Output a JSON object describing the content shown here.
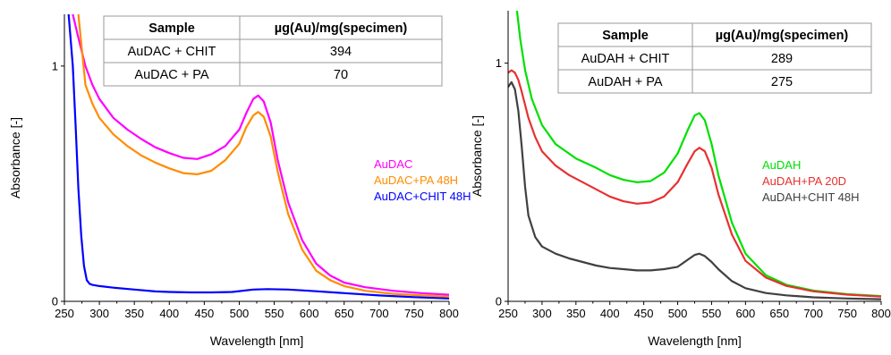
{
  "chart_data": [
    {
      "type": "line",
      "xlabel": "Wavelength [nm]",
      "ylabel": "Absorbance [-]",
      "xlim": [
        250,
        800
      ],
      "ylim": [
        0,
        1.22
      ],
      "x_ticks": [
        250,
        300,
        350,
        400,
        450,
        500,
        550,
        600,
        650,
        700,
        750,
        800
      ],
      "y_ticks": [
        0,
        1
      ],
      "grid": false,
      "legend_position": "center-right",
      "series": [
        {
          "name": "AuDAC",
          "color": "#ff00ff",
          "x": [
            262,
            270,
            280,
            290,
            300,
            320,
            340,
            360,
            380,
            400,
            420,
            440,
            460,
            480,
            500,
            510,
            520,
            527,
            535,
            545,
            555,
            570,
            590,
            610,
            630,
            650,
            680,
            720,
            760,
            800
          ],
          "y": [
            1.22,
            1.12,
            1.0,
            0.92,
            0.86,
            0.78,
            0.73,
            0.69,
            0.655,
            0.63,
            0.61,
            0.605,
            0.625,
            0.66,
            0.73,
            0.8,
            0.86,
            0.875,
            0.85,
            0.76,
            0.6,
            0.42,
            0.26,
            0.16,
            0.11,
            0.08,
            0.06,
            0.045,
            0.035,
            0.028
          ]
        },
        {
          "name": "AuDAC+PA 48H",
          "color": "#ff8c00",
          "x": [
            270,
            280,
            290,
            300,
            320,
            340,
            360,
            380,
            400,
            420,
            440,
            460,
            480,
            500,
            510,
            520,
            527,
            535,
            545,
            555,
            570,
            590,
            610,
            630,
            650,
            680,
            720,
            760,
            800
          ],
          "y": [
            1.22,
            0.92,
            0.84,
            0.78,
            0.71,
            0.66,
            0.62,
            0.59,
            0.565,
            0.545,
            0.54,
            0.555,
            0.6,
            0.67,
            0.74,
            0.79,
            0.805,
            0.785,
            0.7,
            0.55,
            0.37,
            0.22,
            0.13,
            0.09,
            0.065,
            0.045,
            0.032,
            0.025,
            0.02
          ]
        },
        {
          "name": "AuDAC+CHIT 48H",
          "color": "#0000ff",
          "x": [
            256,
            262,
            266,
            270,
            274,
            278,
            282,
            286,
            290,
            300,
            320,
            350,
            380,
            400,
            430,
            460,
            490,
            520,
            540,
            570,
            600,
            650,
            700,
            750,
            800
          ],
          "y": [
            1.22,
            1.0,
            0.75,
            0.48,
            0.28,
            0.15,
            0.09,
            0.075,
            0.07,
            0.065,
            0.058,
            0.05,
            0.042,
            0.04,
            0.038,
            0.038,
            0.04,
            0.05,
            0.052,
            0.05,
            0.045,
            0.035,
            0.025,
            0.018,
            0.012
          ]
        }
      ]
    },
    {
      "type": "line",
      "xlabel": "Wavelength [nm]",
      "ylabel": "Absorbance [-]",
      "xlim": [
        250,
        800
      ],
      "ylim": [
        0,
        1.22
      ],
      "x_ticks": [
        250,
        300,
        350,
        400,
        450,
        500,
        550,
        600,
        650,
        700,
        750,
        800
      ],
      "y_ticks": [
        0,
        1
      ],
      "grid": false,
      "legend_position": "center-right",
      "series": [
        {
          "name": "AuDAH",
          "color": "#00e000",
          "x": [
            263,
            268,
            275,
            285,
            300,
            320,
            350,
            380,
            400,
            420,
            440,
            460,
            480,
            500,
            515,
            525,
            532,
            540,
            550,
            560,
            580,
            600,
            630,
            660,
            700,
            750,
            800
          ],
          "y": [
            1.22,
            1.1,
            0.97,
            0.85,
            0.74,
            0.66,
            0.6,
            0.56,
            0.53,
            0.51,
            0.5,
            0.505,
            0.54,
            0.62,
            0.72,
            0.78,
            0.79,
            0.76,
            0.66,
            0.53,
            0.33,
            0.2,
            0.11,
            0.07,
            0.045,
            0.03,
            0.022
          ]
        },
        {
          "name": "AuDAH+PA 20D",
          "color": "#e83030",
          "x": [
            250,
            255,
            260,
            265,
            270,
            280,
            290,
            300,
            320,
            340,
            360,
            380,
            400,
            420,
            440,
            460,
            480,
            500,
            515,
            525,
            532,
            540,
            550,
            560,
            580,
            600,
            630,
            660,
            700,
            750,
            800
          ],
          "y": [
            0.96,
            0.97,
            0.96,
            0.93,
            0.88,
            0.77,
            0.69,
            0.63,
            0.57,
            0.53,
            0.5,
            0.47,
            0.44,
            0.42,
            0.41,
            0.415,
            0.44,
            0.5,
            0.58,
            0.63,
            0.645,
            0.63,
            0.56,
            0.45,
            0.28,
            0.17,
            0.1,
            0.065,
            0.042,
            0.028,
            0.02
          ]
        },
        {
          "name": "AuDAH+CHIT 48H",
          "color": "#404040",
          "x": [
            250,
            255,
            260,
            265,
            270,
            275,
            280,
            290,
            300,
            320,
            340,
            360,
            380,
            400,
            420,
            440,
            460,
            480,
            500,
            515,
            525,
            532,
            540,
            550,
            560,
            580,
            600,
            630,
            660,
            700,
            750,
            800
          ],
          "y": [
            0.9,
            0.92,
            0.89,
            0.8,
            0.65,
            0.48,
            0.36,
            0.27,
            0.23,
            0.2,
            0.18,
            0.165,
            0.15,
            0.14,
            0.135,
            0.13,
            0.13,
            0.135,
            0.145,
            0.175,
            0.195,
            0.2,
            0.19,
            0.165,
            0.135,
            0.085,
            0.055,
            0.035,
            0.025,
            0.017,
            0.012,
            0.009
          ]
        }
      ]
    }
  ],
  "tables": [
    {
      "headers": [
        "Sample",
        "µg(Au)/mg(specimen)"
      ],
      "rows": [
        [
          "AuDAC + CHIT",
          "394"
        ],
        [
          "AuDAC + PA",
          "70"
        ]
      ]
    },
    {
      "headers": [
        "Sample",
        "µg(Au)/mg(specimen)"
      ],
      "rows": [
        [
          "AuDAH + CHIT",
          "289"
        ],
        [
          "AuDAH + PA",
          "275"
        ]
      ]
    }
  ]
}
